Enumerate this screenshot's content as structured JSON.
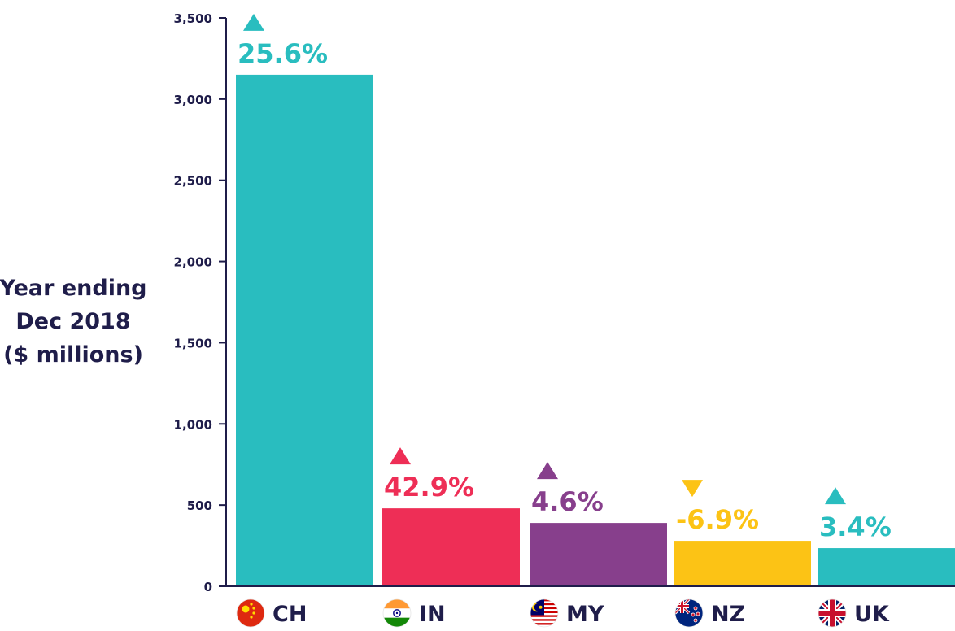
{
  "chart_data": {
    "type": "bar",
    "ylabel": [
      "Year ending",
      "Dec 2018",
      "($ millions)"
    ],
    "ylim": [
      0,
      3500
    ],
    "yticks": [
      0,
      500,
      1000,
      1500,
      2000,
      2500,
      3000,
      3500
    ],
    "ytick_labels": [
      "0",
      "500",
      "1,000",
      "1,500",
      "2,000",
      "2,500",
      "3,000",
      "3,500"
    ],
    "categories": [
      "CH",
      "IN",
      "MY",
      "NZ",
      "UK"
    ],
    "values": [
      3150,
      480,
      390,
      280,
      235
    ],
    "changes": [
      "25.6%",
      "42.9%",
      "4.6%",
      "-6.9%",
      "3.4%"
    ],
    "directions": [
      "up",
      "up",
      "up",
      "down",
      "up"
    ],
    "colors": [
      "#29bdbf",
      "#ee2e56",
      "#873f8c",
      "#fcc315",
      "#29bdbf"
    ],
    "flags": [
      "china-flag-icon",
      "india-flag-icon",
      "malaysia-flag-icon",
      "new-zealand-flag-icon",
      "uk-flag-icon"
    ],
    "axis_color": "#1f1d4a",
    "grid": false
  }
}
